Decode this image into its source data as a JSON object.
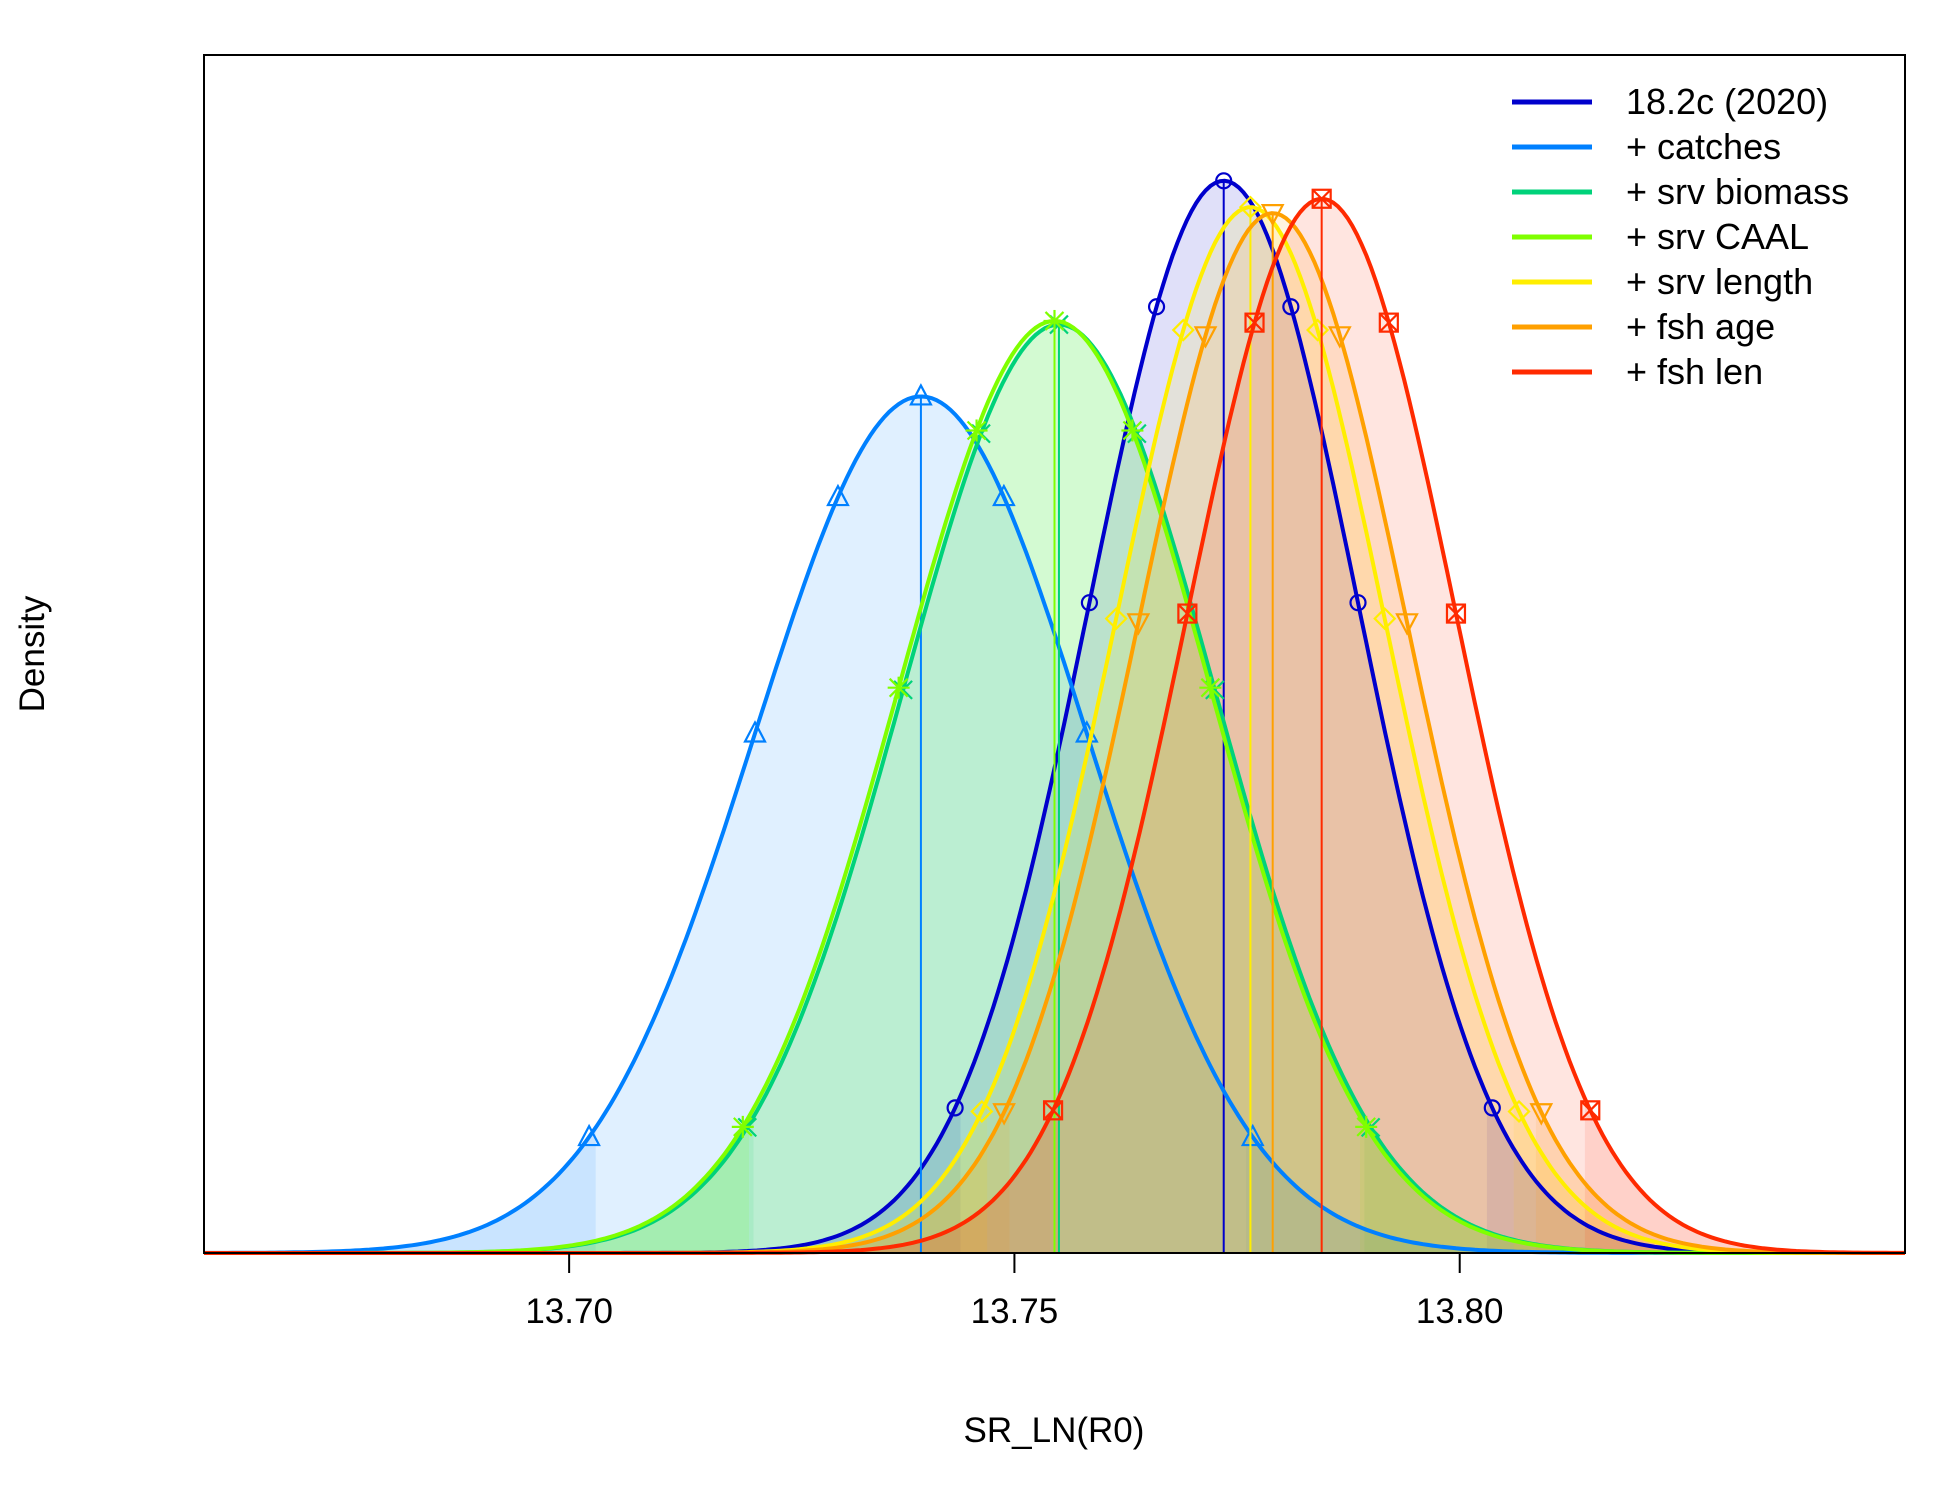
{
  "chart_data": {
    "type": "line",
    "title": "",
    "xlabel": "SR_LN(R0)",
    "ylabel": "Density",
    "xlim": [
      13.659,
      13.85
    ],
    "ylim": [
      0,
      1.0
    ],
    "x_ticks": [
      "13.70",
      "13.75",
      "13.80"
    ],
    "x_tick_values": [
      13.7,
      13.75,
      13.8
    ],
    "y_ticks_shown": false,
    "grid": false,
    "legend_position": "top-right",
    "density_scale_note": "y values are relative densities (no y tick labels shown)",
    "series": [
      {
        "name": "18.2c (2020)",
        "color": "#0000CC",
        "mean": 13.7735,
        "sd": 0.01508,
        "peak": 0.895,
        "marker": "circle"
      },
      {
        "name": "+ catches",
        "color": "#0080FF",
        "mean": 13.7395,
        "sd": 0.01863,
        "peak": 0.715,
        "marker": "triangle"
      },
      {
        "name": "+ srv biomass",
        "color": "#00D27A",
        "mean": 13.755,
        "sd": 0.0175,
        "peak": 0.775,
        "marker": "x"
      },
      {
        "name": "+ srv CAAL",
        "color": "#7FFF00",
        "mean": 13.7545,
        "sd": 0.0175,
        "peak": 0.778,
        "marker": "asterisk"
      },
      {
        "name": "+ srv length",
        "color": "#FFEE00",
        "mean": 13.7765,
        "sd": 0.01508,
        "peak": 0.873,
        "marker": "diamond"
      },
      {
        "name": "+ fsh age",
        "color": "#FFA000",
        "mean": 13.779,
        "sd": 0.01508,
        "peak": 0.868,
        "marker": "down-triangle"
      },
      {
        "name": "+ fsh len",
        "color": "#FF2A00",
        "mean": 13.7845,
        "sd": 0.01508,
        "peak": 0.88,
        "marker": "boxed-x"
      }
    ]
  }
}
